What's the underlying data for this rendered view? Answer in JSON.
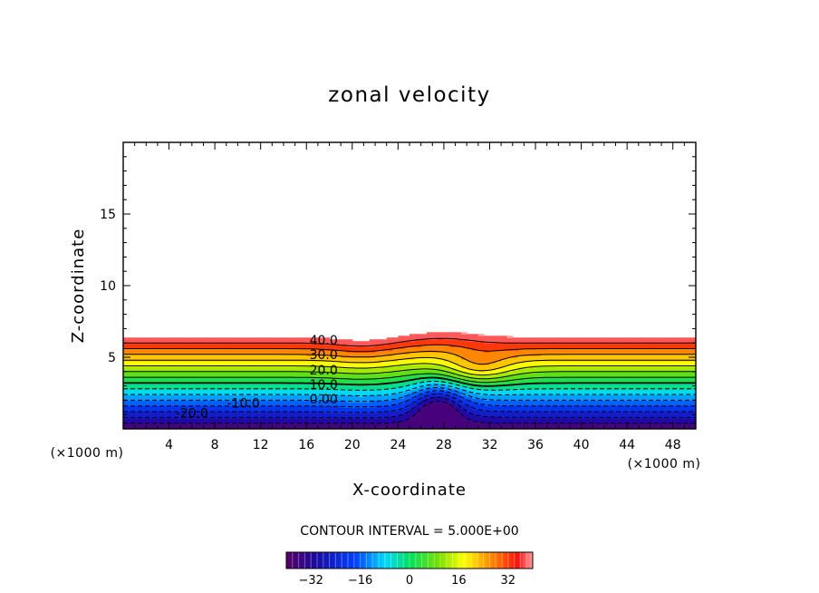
{
  "chart_data": {
    "type": "contour",
    "title": "zonal velocity",
    "xlabel": "X-coordinate",
    "ylabel": "Z-coordinate",
    "x_unit": "(×1000 m)",
    "y_unit": "(×1000 m)",
    "xlim": [
      0,
      50
    ],
    "ylim": [
      0,
      20
    ],
    "x_ticks": [
      4,
      8,
      12,
      16,
      20,
      24,
      28,
      32,
      36,
      40,
      44,
      48
    ],
    "y_ticks": [
      5,
      10,
      15
    ],
    "contour_interval_label": "CONTOUR INTERVAL = 5.000E+00",
    "contour_interval": 5,
    "field_range": [
      -40,
      40
    ],
    "contour_labels": [
      {
        "text": "40.0",
        "x": 17.5,
        "z": 6.2
      },
      {
        "text": "30.0",
        "x": 17.5,
        "z": 5.2
      },
      {
        "text": "20.0",
        "x": 17.5,
        "z": 4.1
      },
      {
        "text": "10.0",
        "x": 17.5,
        "z": 3.1
      },
      {
        "text": "0.00",
        "x": 17.5,
        "z": 2.1
      },
      {
        "text": "-10.0",
        "x": 10.5,
        "z": 1.8
      },
      {
        "text": "-20.0",
        "x": 6.0,
        "z": 1.1
      }
    ],
    "colorbar": {
      "range": [
        -40,
        40
      ],
      "ticks": [
        -32,
        -16,
        0,
        16,
        32
      ]
    }
  }
}
